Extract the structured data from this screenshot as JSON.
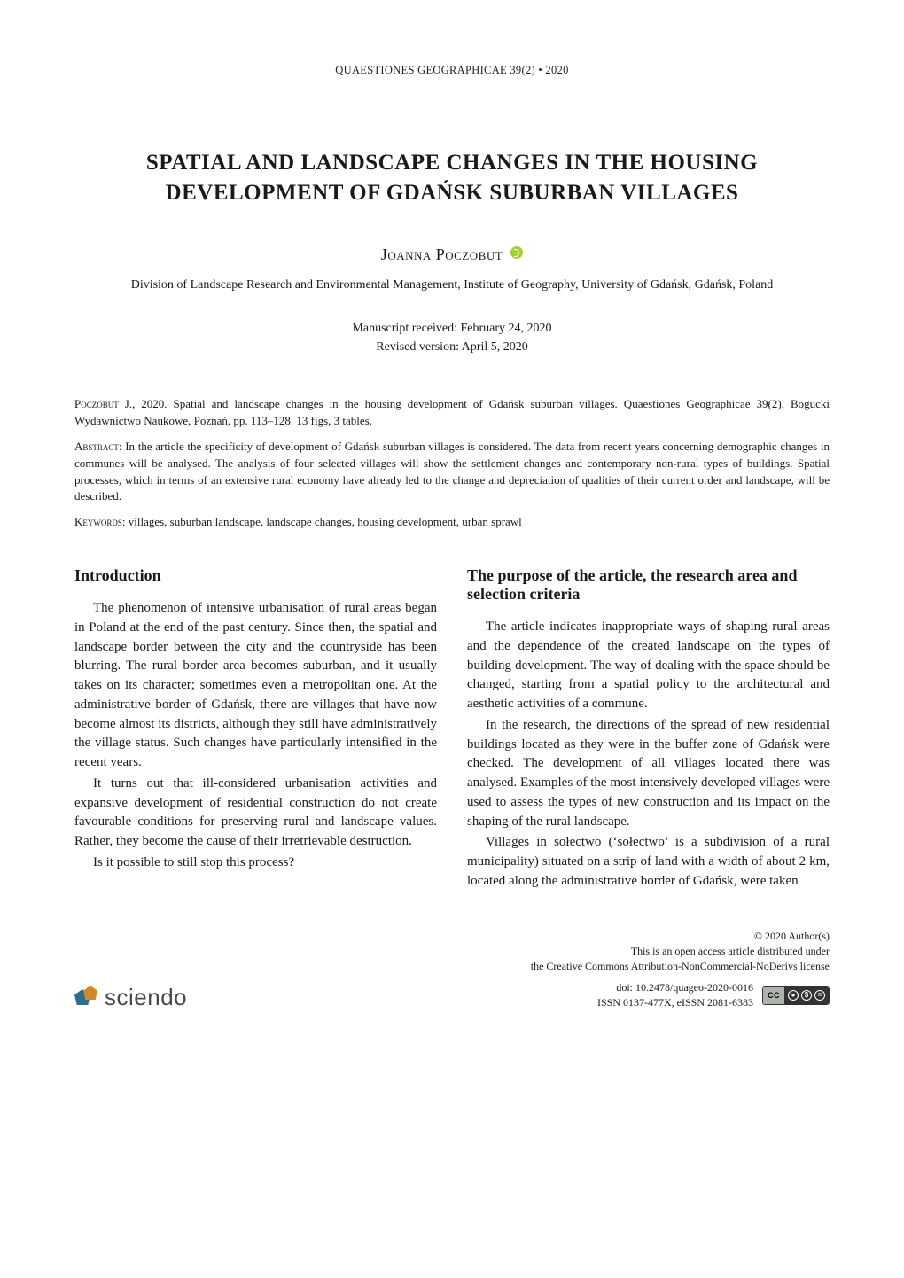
{
  "running_head": "QUAESTIONES GEOGRAPHICAE 39(2) • 2020",
  "title": "SPATIAL AND LANDSCAPE CHANGES IN THE HOUSING DEVELOPMENT OF GDAŃSK SUBURBAN VILLAGES",
  "author": "Joanna Poczobut",
  "affiliation": "Division of Landscape Research and Environmental Management, Institute of Geography, University of Gdańsk, Gdańsk, Poland",
  "dates": {
    "received": "Manuscript received: February 24, 2020",
    "revised": "Revised version: April 5, 2020"
  },
  "citation": {
    "author_sc": "Poczobut",
    "rest": " J., 2020. Spatial and landscape changes in the housing development of Gdańsk suburban villages. Quaestiones Geographicae 39(2), Bogucki Wydawnictwo Naukowe, Poznań, pp. 113–128. 13 figs, 3 tables."
  },
  "abstract": {
    "label_sc": "Abstract",
    "text": ": In the article the specificity of development of Gdańsk suburban villages is considered. The data from recent years concerning demographic changes in communes will be analysed. The analysis of four selected villages will show the settlement changes and contemporary non-rural types of buildings. Spatial processes, which in terms of an extensive rural economy have already led to the change and depreciation of qualities of their current order and landscape, will be described."
  },
  "keywords": {
    "label_sc": "Keywords",
    "text": ": villages, suburban landscape, landscape changes, housing development, urban sprawl"
  },
  "left": {
    "heading": "Introduction",
    "p1": "The phenomenon of intensive urbanisation of rural areas began in Poland at the end of the past century. Since then, the spatial and landscape border between the city and the countryside has been blurring. The rural border area becomes suburban, and it usually takes on its character; sometimes even a metropolitan one. At the administrative border of Gdańsk, there are villages that have now become almost its districts, although they still have administratively the village status. Such changes have particularly intensified in the recent years.",
    "p2": "It turns out that ill-considered urbanisation activities and expansive development of residential construction do not create favourable conditions for preserving rural and landscape values. Rather, they become the cause of their irretrievable destruction.",
    "p3": "Is it possible to still stop this process?"
  },
  "right": {
    "heading": "The purpose of the article, the research area and selection criteria",
    "p1": "The article indicates inappropriate ways of shaping rural areas and the dependence of the created landscape on the types of building development. The way of dealing with the space should be changed, starting from a spatial policy to the architectural and aesthetic activities of a commune.",
    "p2": "In the research, the directions of the spread of new residential buildings located as they were in the buffer zone of Gdańsk were checked. The development of all villages located there was analysed. Examples of the most intensively developed villages were used to assess the types of new construction and its impact on the shaping of the rural landscape.",
    "p3": "Villages in sołectwo (‘sołectwo’ is a subdivision of a rural municipality) situated on a strip of land with a width of about 2 km, located along the administrative border of Gdańsk, were taken"
  },
  "footer": {
    "brand": "sciendo",
    "copyright": "© 2020 Author(s)",
    "oa_line1": "This is an open access article distributed under",
    "oa_line2": "the Creative Commons Attribution-NonCommercial-NoDerivs license",
    "doi": "doi: 10.2478/quageo-2020-0016",
    "issn": "ISSN 0137-477X, eISSN 2081-6383",
    "cc_left": "CC",
    "cc_by": "BY",
    "cc_nc": "NC",
    "cc_nd": "ND"
  }
}
